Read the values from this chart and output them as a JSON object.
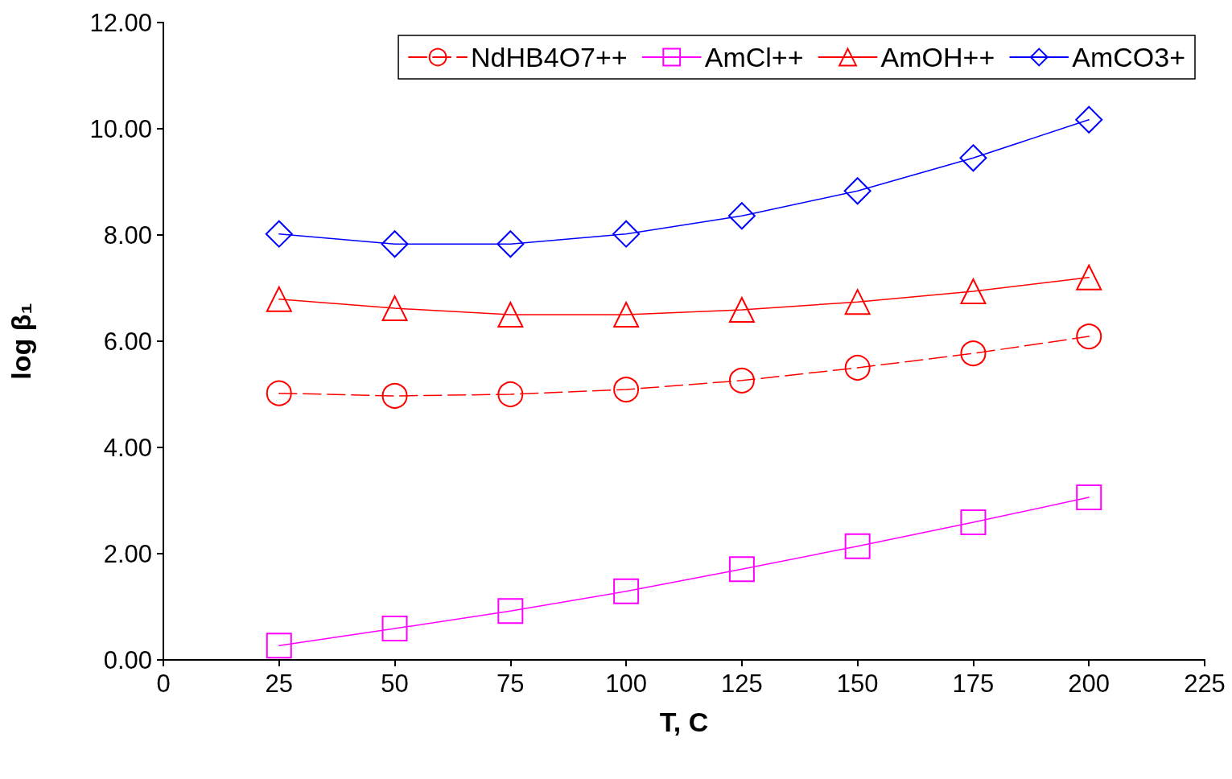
{
  "chart_data": {
    "type": "line",
    "xlabel": "T, C",
    "ylabel": "log β₁",
    "x": [
      25,
      50,
      75,
      100,
      125,
      150,
      175,
      200
    ],
    "series": [
      {
        "name": "NdHB4O7++",
        "color": "#ff0000",
        "marker": "circle",
        "line_style": "dashed",
        "values": [
          5.02,
          4.97,
          5.0,
          5.09,
          5.26,
          5.5,
          5.77,
          6.09
        ]
      },
      {
        "name": "AmCl++",
        "color": "#ff00ff",
        "marker": "square",
        "line_style": "solid",
        "values": [
          0.27,
          0.59,
          0.92,
          1.29,
          1.71,
          2.14,
          2.59,
          3.06
        ]
      },
      {
        "name": "AmOH++",
        "color": "#ff0000",
        "marker": "triangle",
        "line_style": "solid",
        "values": [
          6.79,
          6.62,
          6.5,
          6.5,
          6.59,
          6.74,
          6.94,
          7.2
        ]
      },
      {
        "name": "AmCO3+",
        "color": "#0000ff",
        "marker": "diamond",
        "line_style": "solid",
        "values": [
          8.02,
          7.83,
          7.83,
          8.02,
          8.36,
          8.83,
          9.45,
          10.17
        ]
      }
    ],
    "xlim": [
      0,
      225
    ],
    "xticks": [
      0,
      25,
      50,
      75,
      100,
      125,
      150,
      175,
      200,
      225
    ],
    "ylim": [
      0,
      12
    ],
    "yticks": [
      {
        "value": 0,
        "label": "0.00"
      },
      {
        "value": 2,
        "label": "2.00"
      },
      {
        "value": 4,
        "label": "4.00"
      },
      {
        "value": 6,
        "label": "6.00"
      },
      {
        "value": 8,
        "label": "8.00"
      },
      {
        "value": 10,
        "label": "10.00"
      },
      {
        "value": 12,
        "label": "12.00"
      }
    ],
    "grid": false,
    "legend": "top right"
  }
}
